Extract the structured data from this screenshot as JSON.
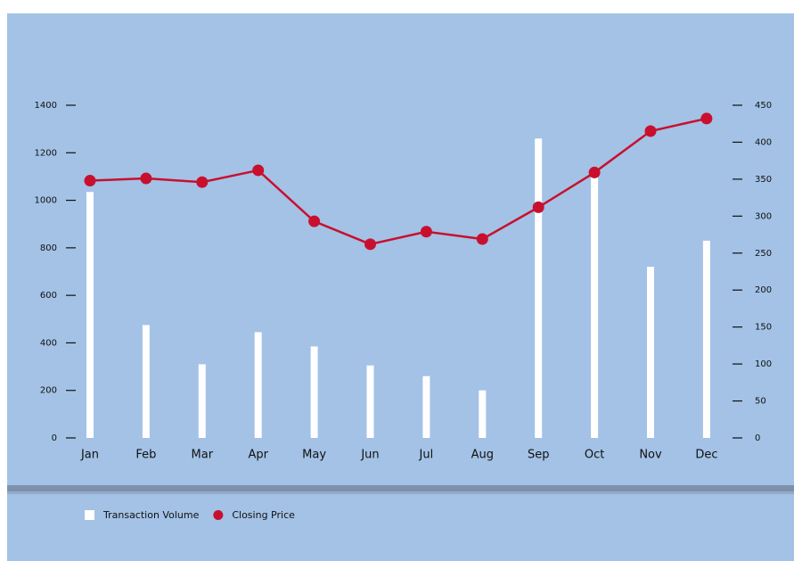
{
  "chart_data": {
    "type": "bar-line",
    "categories": [
      "Jan",
      "Feb",
      "Mar",
      "Apr",
      "May",
      "Jun",
      "Jul",
      "Aug",
      "Sep",
      "Oct",
      "Nov",
      "Dec"
    ],
    "series": [
      {
        "name": "Transaction Volume",
        "type": "bar",
        "color": "#ffffff",
        "axis": "y",
        "values": [
          1035,
          475,
          310,
          445,
          385,
          305,
          260,
          200,
          1260,
          1110,
          720,
          830
        ]
      },
      {
        "name": "Closing Price",
        "type": "line",
        "color": "#c8102e",
        "axis": "y2",
        "values": [
          348,
          351,
          346,
          362,
          293,
          262,
          279,
          269,
          312,
          359,
          415,
          432
        ]
      }
    ],
    "ylim": [
      0,
      1400
    ],
    "yticks": [
      0,
      200,
      400,
      600,
      800,
      1000,
      1200,
      1400
    ],
    "y2lim": [
      0,
      450
    ],
    "y2ticks": [
      0,
      50,
      100,
      150,
      200,
      250,
      300,
      350,
      400,
      450
    ],
    "legend": "bottom-left"
  }
}
